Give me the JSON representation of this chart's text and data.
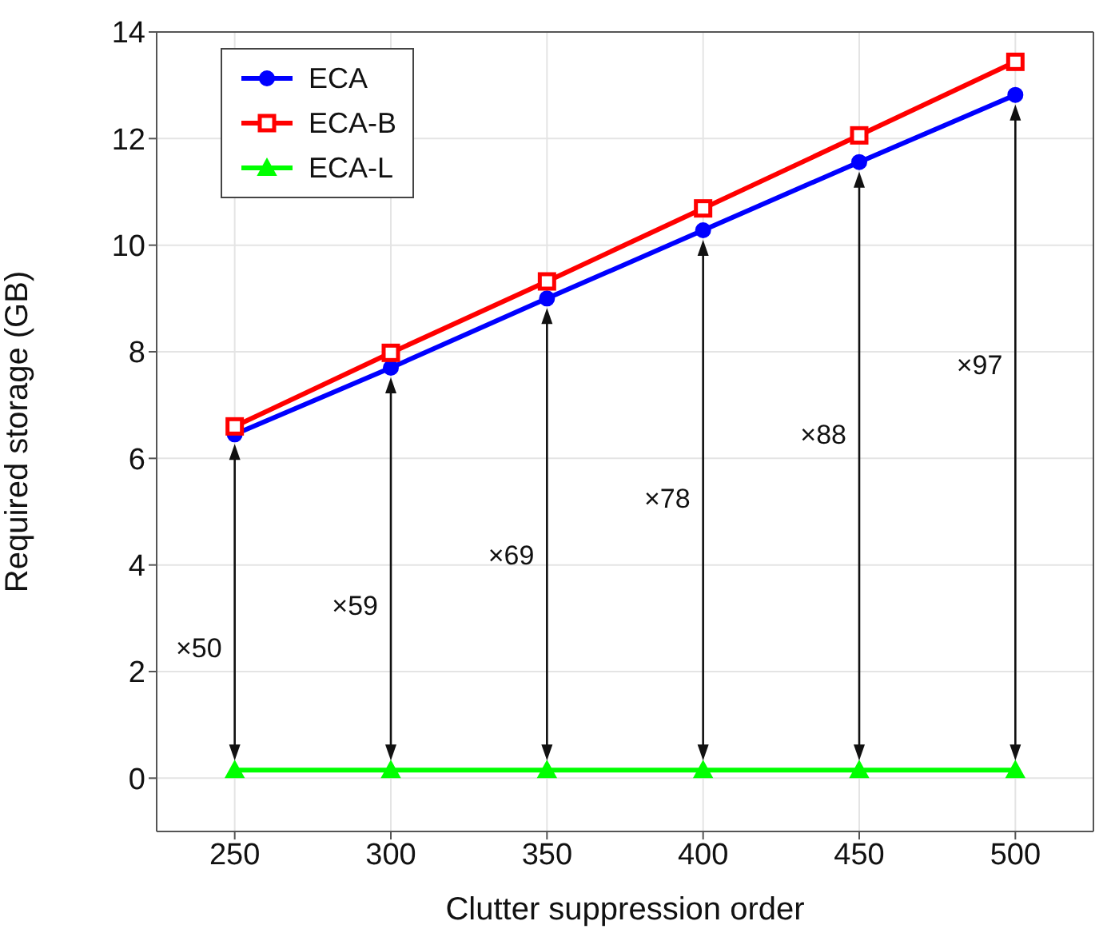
{
  "chart_data": {
    "type": "line",
    "xlabel": "Clutter suppression order",
    "ylabel": "Required storage (GB)",
    "x": [
      250,
      300,
      350,
      400,
      450,
      500
    ],
    "series": [
      {
        "name": "ECA",
        "color": "#0000ff",
        "marker": "circle",
        "values": [
          6.45,
          7.7,
          9.0,
          10.28,
          11.56,
          12.82
        ]
      },
      {
        "name": "ECA-B",
        "color": "#ff0000",
        "marker": "square",
        "values": [
          6.6,
          7.98,
          9.32,
          10.69,
          12.06,
          13.44
        ]
      },
      {
        "name": "ECA-L",
        "color": "#00ff00",
        "marker": "triangle",
        "values": [
          0.15,
          0.15,
          0.15,
          0.15,
          0.15,
          0.15
        ]
      }
    ],
    "xlim": [
      225,
      525
    ],
    "xticks": [
      250,
      300,
      350,
      400,
      450,
      500
    ],
    "ylim": [
      -1,
      14
    ],
    "yticks": [
      0,
      2,
      4,
      6,
      8,
      10,
      12,
      14
    ],
    "grid": true,
    "legend": "top left",
    "annotations": [
      "×50",
      "×59",
      "×69",
      "×78",
      "×88",
      "×97"
    ]
  }
}
